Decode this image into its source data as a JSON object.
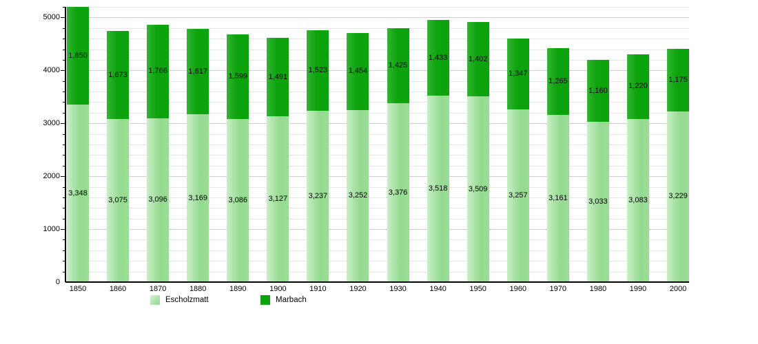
{
  "chart_data": {
    "type": "bar",
    "stacked": true,
    "title": "",
    "xlabel": "",
    "ylabel": "",
    "categories": [
      1850,
      1860,
      1870,
      1880,
      1890,
      1900,
      1910,
      1920,
      1930,
      1940,
      1950,
      1960,
      1970,
      1980,
      1990,
      2000
    ],
    "series": [
      {
        "name": "Escholzmatt",
        "color": "#9bdd97",
        "values": [
          3348,
          3075,
          3096,
          3169,
          3086,
          3127,
          3237,
          3252,
          3376,
          3518,
          3509,
          3257,
          3161,
          3033,
          3083,
          3229
        ]
      },
      {
        "name": "Marbach",
        "color": "#0ca30c",
        "values": [
          1850,
          1673,
          1766,
          1617,
          1599,
          1491,
          1523,
          1454,
          1425,
          1433,
          1402,
          1347,
          1265,
          1160,
          1220,
          1175
        ]
      }
    ],
    "ylim": [
      0,
      5200
    ],
    "y_major_ticks": [
      0,
      1000,
      2000,
      3000,
      4000,
      5000
    ],
    "y_minor_step": 200,
    "grid": true,
    "legend_position": "bottom",
    "bar_value_labels_shown": true
  }
}
